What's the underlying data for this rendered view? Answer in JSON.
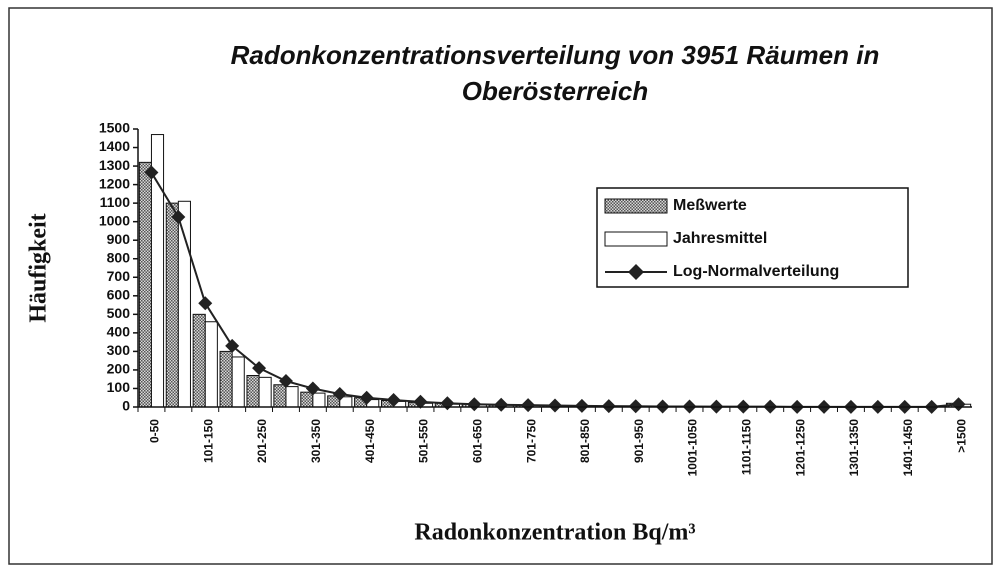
{
  "chart_data": {
    "type": "bar",
    "title": [
      "Radonkonzentrationsverteilung von 3951 Räumen in",
      "Oberösterreich"
    ],
    "ylabel": "Häufigkeit",
    "xlabel": "Radonkonzentration Bq/m³",
    "categories": [
      "0-50",
      null,
      "101-150",
      null,
      "201-250",
      null,
      "301-350",
      null,
      "401-450",
      null,
      "501-550",
      null,
      "601-650",
      null,
      "701-750",
      null,
      "801-850",
      null,
      "901-950",
      null,
      "1001-1050",
      null,
      "1101-1150",
      null,
      "1201-1250",
      null,
      "1301-1350",
      null,
      "1401-1450",
      null,
      ">1500"
    ],
    "series": [
      {
        "name": "Meßwerte",
        "color": "#808080",
        "pattern": "hatched",
        "values": [
          1320,
          1100,
          500,
          300,
          170,
          120,
          80,
          60,
          50,
          35,
          25,
          20,
          15,
          10,
          10,
          8,
          6,
          5,
          5,
          4,
          3,
          3,
          2,
          2,
          2,
          1,
          1,
          1,
          1,
          1,
          20
        ]
      },
      {
        "name": "Jahresmittel",
        "color": "#ffffff",
        "values": [
          1470,
          1110,
          460,
          270,
          160,
          110,
          75,
          55,
          40,
          30,
          20,
          15,
          12,
          10,
          8,
          6,
          5,
          4,
          3,
          3,
          2,
          2,
          2,
          1,
          1,
          1,
          1,
          1,
          1,
          1,
          15
        ]
      },
      {
        "name": "Log-Normalverteilung",
        "color": "#222222",
        "type": "line",
        "values": [
          1265,
          1025,
          560,
          330,
          210,
          140,
          100,
          70,
          50,
          38,
          28,
          20,
          15,
          12,
          10,
          8,
          6,
          5,
          4,
          3,
          3,
          2,
          2,
          2,
          1,
          1,
          1,
          1,
          1,
          1,
          15
        ]
      }
    ],
    "ylim": [
      0,
      1500
    ],
    "yticks": [
      0,
      100,
      200,
      300,
      400,
      500,
      600,
      700,
      800,
      900,
      1000,
      1100,
      1200,
      1300,
      1400,
      1500
    ],
    "grid": false,
    "legend": "upper right"
  }
}
